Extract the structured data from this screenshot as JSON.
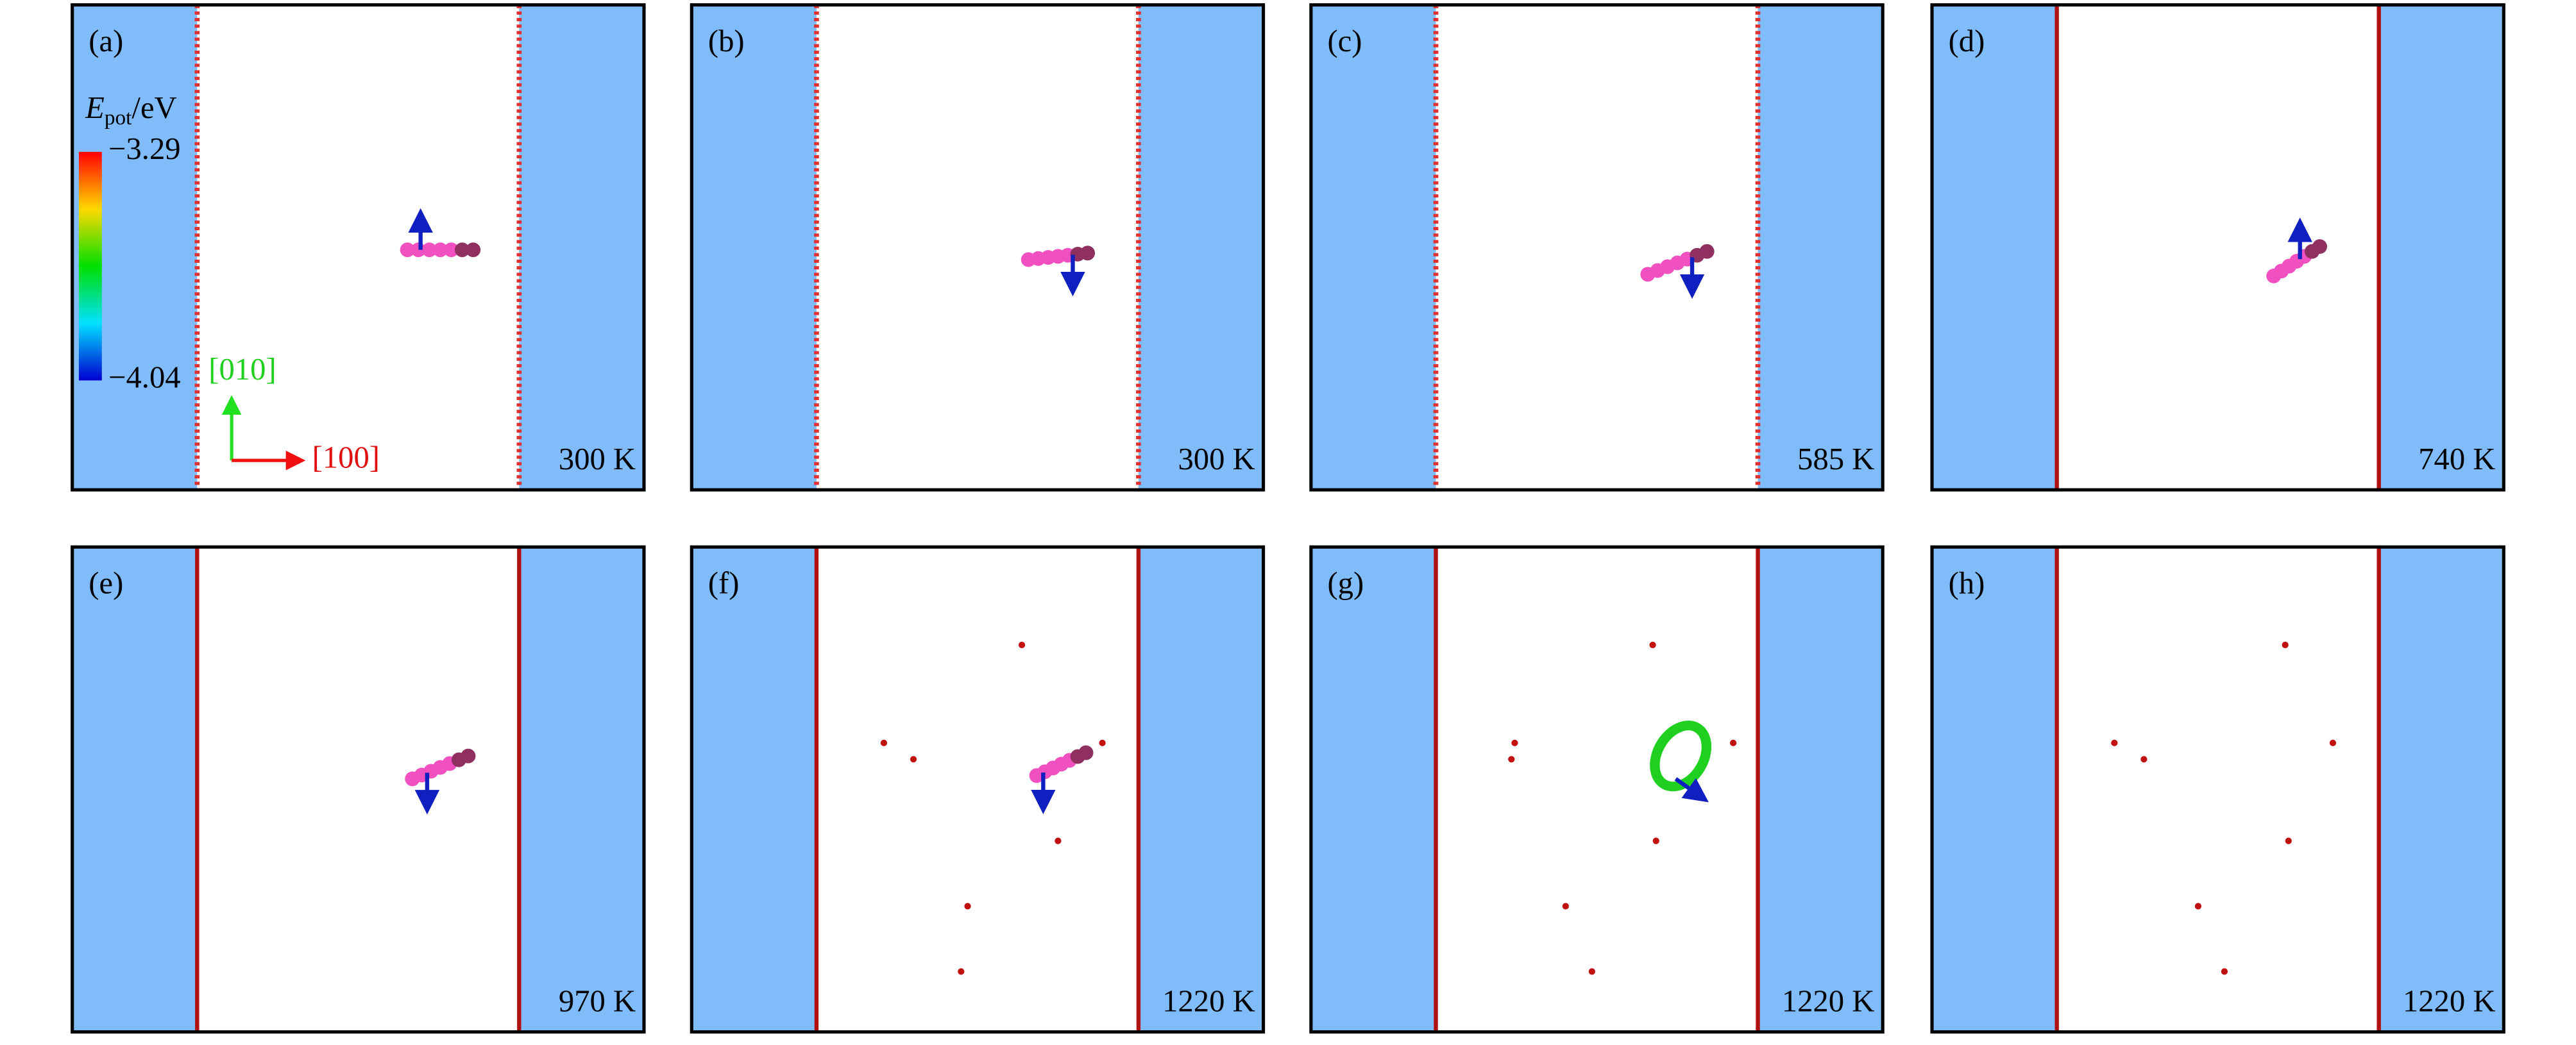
{
  "panels": [
    {
      "label": "(a)",
      "temperature": "300 K"
    },
    {
      "label": "(b)",
      "temperature": "300 K"
    },
    {
      "label": "(c)",
      "temperature": "585 K"
    },
    {
      "label": "(d)",
      "temperature": "740 K"
    },
    {
      "label": "(e)",
      "temperature": "970 K"
    },
    {
      "label": "(f)",
      "temperature": "1220 K"
    },
    {
      "label": "(g)",
      "temperature": "1220 K"
    },
    {
      "label": "(h)",
      "temperature": "1220 K"
    }
  ],
  "colorbar": {
    "title": {
      "symbol": "E",
      "subscript": "pot",
      "unit": "/eV"
    },
    "max_label": "−3.29",
    "min_label": "−4.04"
  },
  "directions": {
    "y_direction": "[010]",
    "x_direction": "[100]"
  }
}
